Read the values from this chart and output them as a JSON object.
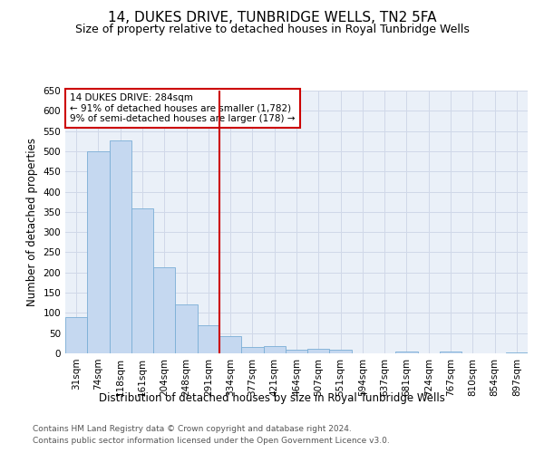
{
  "title": "14, DUKES DRIVE, TUNBRIDGE WELLS, TN2 5FA",
  "subtitle": "Size of property relative to detached houses in Royal Tunbridge Wells",
  "xlabel": "Distribution of detached houses by size in Royal Tunbridge Wells",
  "ylabel": "Number of detached properties",
  "footer_line1": "Contains HM Land Registry data © Crown copyright and database right 2024.",
  "footer_line2": "Contains public sector information licensed under the Open Government Licence v3.0.",
  "property_label": "14 DUKES DRIVE: 284sqm",
  "annotation_line1": "← 91% of detached houses are smaller (1,782)",
  "annotation_line2": "9% of semi-detached houses are larger (178) →",
  "bar_color": "#c5d8f0",
  "bar_edge_color": "#7aaed6",
  "vline_color": "#cc0000",
  "annotation_box_edge": "#cc0000",
  "grid_color": "#d0d8e8",
  "background_color": "#eaf0f8",
  "categories": [
    "31sqm",
    "74sqm",
    "118sqm",
    "161sqm",
    "204sqm",
    "248sqm",
    "291sqm",
    "334sqm",
    "377sqm",
    "421sqm",
    "464sqm",
    "507sqm",
    "551sqm",
    "594sqm",
    "637sqm",
    "681sqm",
    "724sqm",
    "767sqm",
    "810sqm",
    "854sqm",
    "897sqm"
  ],
  "values": [
    90,
    500,
    527,
    358,
    213,
    120,
    70,
    42,
    16,
    19,
    10,
    11,
    9,
    0,
    0,
    5,
    0,
    4,
    0,
    0,
    3
  ],
  "ylim": [
    0,
    650
  ],
  "yticks": [
    0,
    50,
    100,
    150,
    200,
    250,
    300,
    350,
    400,
    450,
    500,
    550,
    600,
    650
  ],
  "vline_x": 6.5,
  "title_fontsize": 11,
  "subtitle_fontsize": 9,
  "axis_label_fontsize": 8.5,
  "tick_fontsize": 7.5,
  "annotation_fontsize": 7.5,
  "footer_fontsize": 6.5
}
